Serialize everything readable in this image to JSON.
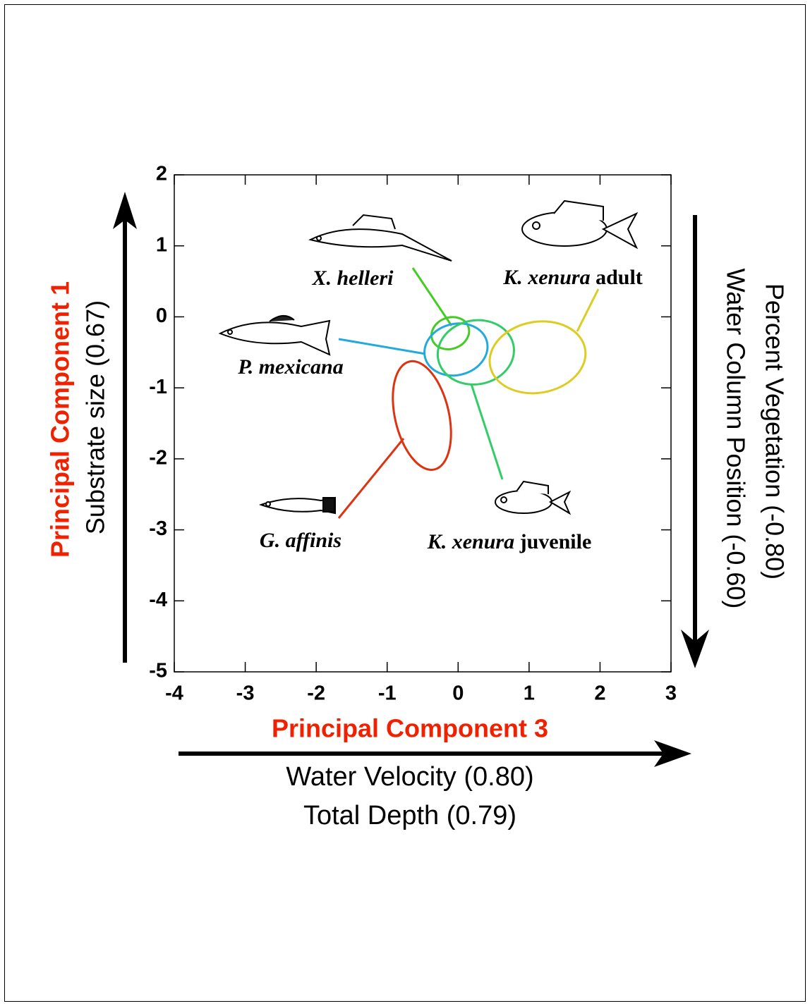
{
  "chart_data": {
    "type": "ellipse",
    "xlabel": "Principal Component 3",
    "xlabel_loadings": [
      "Water Velocity (0.80)",
      "Total Depth (0.79)"
    ],
    "ylabel": "Principal Component 1",
    "ylabel_loading": "Substrate size (0.67)",
    "right_labels": [
      "Percent Vegetation (-0.80)",
      "Water Column Position (-0.60)"
    ],
    "xlim": [
      -4,
      3
    ],
    "xticks": [
      -4,
      -3,
      -2,
      -1,
      0,
      1,
      2,
      3
    ],
    "ylim": [
      -5,
      2
    ],
    "yticks": [
      -5,
      -4,
      -3,
      -2,
      -1,
      0,
      1,
      2
    ],
    "series": [
      {
        "species": "X. helleri",
        "color": "#44cc22",
        "cx": -0.11,
        "cy": -0.23,
        "rx": 0.27,
        "ry": 0.22,
        "angle": -20
      },
      {
        "species": "P. mexicana",
        "color": "#22aadd",
        "cx": -0.03,
        "cy": -0.46,
        "rx": 0.45,
        "ry": 0.36,
        "angle": -15
      },
      {
        "species": "K. xenura",
        "stage": "juvenile",
        "color": "#33cc66",
        "cx": 0.25,
        "cy": -0.5,
        "rx": 0.54,
        "ry": 0.45,
        "angle": -10
      },
      {
        "species": "K. xenura",
        "stage": "adult",
        "color": "#ddcc22",
        "cx": 1.12,
        "cy": -0.57,
        "rx": 0.68,
        "ry": 0.5,
        "angle": -10
      },
      {
        "species": "G. affinis",
        "color": "#dd3311",
        "cx": -0.51,
        "cy": -1.39,
        "rx": 0.38,
        "ry": 0.78,
        "angle": -13
      }
    ]
  }
}
